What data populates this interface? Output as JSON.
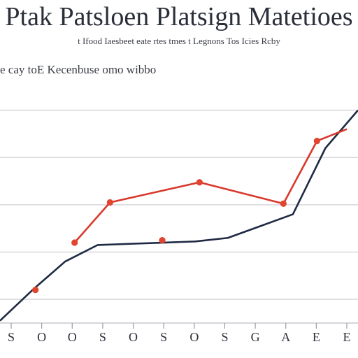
{
  "chart_data": {
    "type": "line",
    "title": "Ptak Patsloen Platsign Matetioes",
    "subtitle": "t Ifood Iaesbeet eate rtes tmes t Legnons Tos Icies Rcby",
    "legend_text": "e cay toE Kecenbuse omo wibbo",
    "categories": [
      "S",
      "O",
      "O",
      "S",
      "O",
      "S",
      "O",
      "S",
      "G",
      "A",
      "E",
      "E"
    ],
    "ylim": [
      0,
      11
    ],
    "grid": true,
    "series": [
      {
        "color": "#1f2a44",
        "values": [
          0.1,
          1.4,
          2.6,
          3.3,
          3.35,
          3.4,
          3.45,
          3.6,
          4.1,
          4.6,
          7.4,
          9.0
        ]
      },
      {
        "color": "#d9382c",
        "x": [
          4,
          5.9,
          10.7,
          15.2,
          17.0,
          18.6
        ],
        "values": [
          3.4,
          5.1,
          5.95,
          5.05,
          7.7,
          8.2
        ]
      }
    ],
    "markers": [
      {
        "series": 0,
        "x": 1.9,
        "y": 1.4
      },
      {
        "series": 0,
        "x": 4,
        "y": 3.4
      },
      {
        "series": 0,
        "x": 8.7,
        "y": 3.5
      },
      {
        "series": 1,
        "x": 5.9,
        "y": 5.1
      },
      {
        "series": 1,
        "x": 10.7,
        "y": 5.95
      },
      {
        "series": 1,
        "x": 15.2,
        "y": 5.05
      },
      {
        "series": 1,
        "x": 17.0,
        "y": 7.7
      }
    ]
  }
}
